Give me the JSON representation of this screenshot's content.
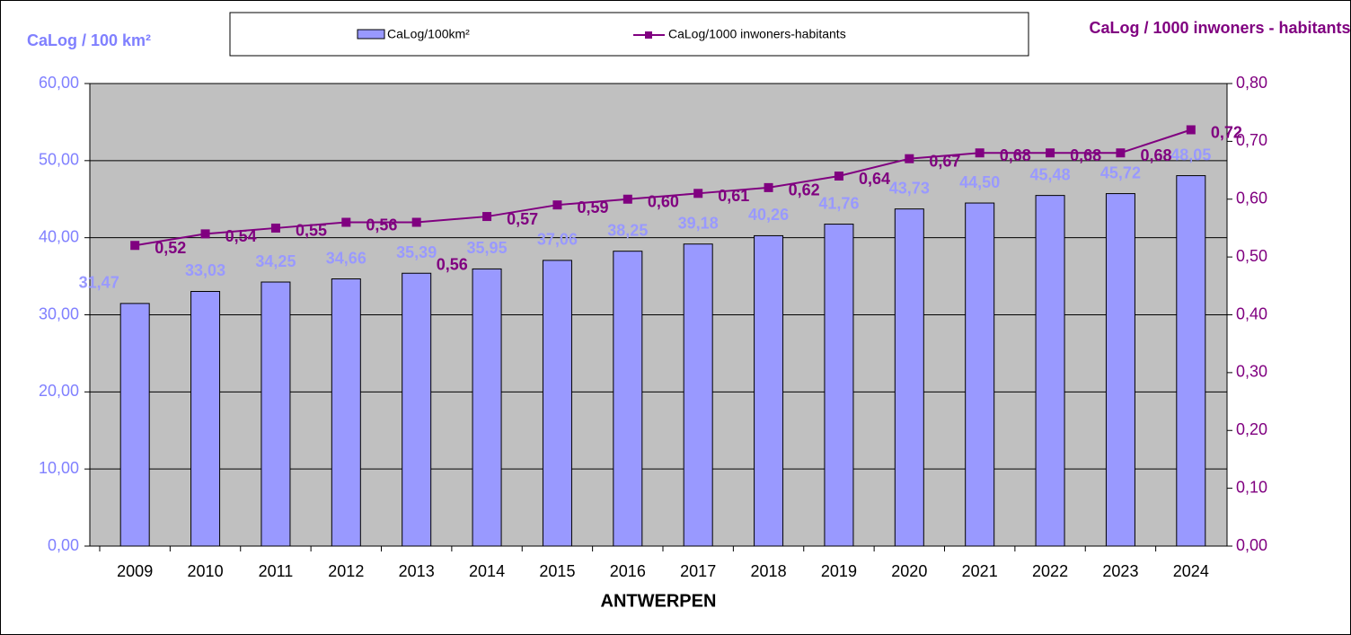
{
  "chart_data": {
    "type": "bar-line",
    "y_label": "CaLog / 100 km²",
    "y2_label": "CaLog / 1000 inwoners - habitants",
    "x_label": "ANTWERPEN",
    "categories": [
      "2009",
      "2010",
      "2011",
      "2012",
      "2013",
      "2014",
      "2015",
      "2016",
      "2017",
      "2018",
      "2019",
      "2020",
      "2021",
      "2022",
      "2023",
      "2024"
    ],
    "series": [
      {
        "name": "CaLog/100km²",
        "type": "bar",
        "color": "#9999ff",
        "label_color": "#9999ff",
        "values": [
          31.47,
          33.03,
          34.25,
          34.66,
          35.39,
          35.95,
          37.06,
          38.25,
          39.18,
          40.26,
          41.76,
          43.73,
          44.5,
          45.48,
          45.72,
          48.05
        ],
        "value_labels": [
          "31,47",
          "33,03",
          "34,25",
          "34,66",
          "35,39",
          "35,95",
          "37,06",
          "38,25",
          "39,18",
          "40,26",
          "41,76",
          "43,73",
          "44,50",
          "45,48",
          "45,72",
          "48,05"
        ]
      },
      {
        "name": "CaLog/1000 inwoners-habitants",
        "type": "line",
        "axis": "y2",
        "color": "#800080",
        "values": [
          0.52,
          0.54,
          0.55,
          0.56,
          0.56,
          0.57,
          0.59,
          0.6,
          0.61,
          0.62,
          0.64,
          0.67,
          0.68,
          0.68,
          0.68,
          0.72
        ],
        "value_labels": [
          "0,52",
          "0,54",
          "0,55",
          "0,56",
          "0,56",
          "0,57",
          "0,59",
          "0,60",
          "0,61",
          "0,62",
          "0,64",
          "0,67",
          "0,68",
          "0,68",
          "0,68",
          "0,72"
        ]
      }
    ],
    "ylim": [
      0,
      60
    ],
    "yticks": [
      {
        "value": 0,
        "label": "0,00"
      },
      {
        "value": 10,
        "label": "10,00"
      },
      {
        "value": 20,
        "label": "20,00"
      },
      {
        "value": 30,
        "label": "30,00"
      },
      {
        "value": 40,
        "label": "40,00"
      },
      {
        "value": 50,
        "label": "50,00"
      },
      {
        "value": 60,
        "label": "60,00"
      }
    ],
    "y2lim": [
      0,
      0.8
    ],
    "y2ticks": [
      {
        "value": 0,
        "label": "0,00"
      },
      {
        "value": 0.1,
        "label": "0,10"
      },
      {
        "value": 0.2,
        "label": "0,20"
      },
      {
        "value": 0.3,
        "label": "0,30"
      },
      {
        "value": 0.4,
        "label": "0,40"
      },
      {
        "value": 0.5,
        "label": "0,50"
      },
      {
        "value": 0.6,
        "label": "0,60"
      },
      {
        "value": 0.7,
        "label": "0,70"
      },
      {
        "value": 0.8,
        "label": "0,80"
      }
    ],
    "grid": true,
    "legend": "top"
  }
}
